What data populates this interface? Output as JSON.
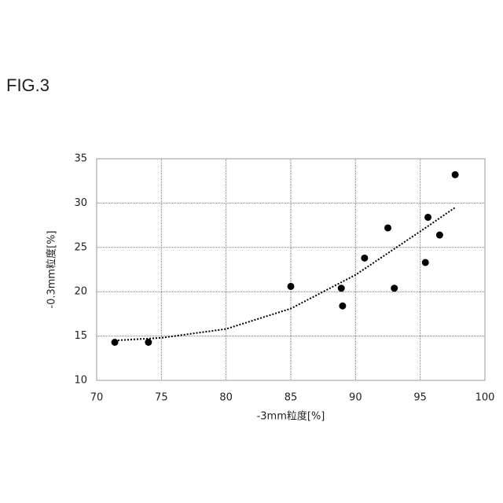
{
  "chart_data": {
    "type": "scatter",
    "title": "FIG.3",
    "x_label": "-3mm粒度[%]",
    "y_label": "-0.3mm粒度[%]",
    "x": [
      71.4,
      74.0,
      85.0,
      88.9,
      89.0,
      90.7,
      92.5,
      93.0,
      95.4,
      95.6,
      96.5,
      97.7
    ],
    "values": [
      14.3,
      14.3,
      20.6,
      20.4,
      18.4,
      23.8,
      27.2,
      20.4,
      23.3,
      28.4,
      26.4,
      33.2
    ],
    "color": "#000000",
    "trendline": {
      "x": [
        71.4,
        75,
        80,
        85,
        90,
        95,
        97.7
      ],
      "values": [
        14.5,
        14.8,
        15.8,
        18.1,
        21.9,
        26.8,
        29.5
      ]
    },
    "xlim": [
      70,
      100
    ],
    "xticks": [
      70,
      75,
      80,
      85,
      90,
      95,
      100
    ],
    "ylim": [
      10,
      35
    ],
    "yticks": [
      10,
      15,
      20,
      25,
      30,
      35
    ],
    "grid": true
  }
}
